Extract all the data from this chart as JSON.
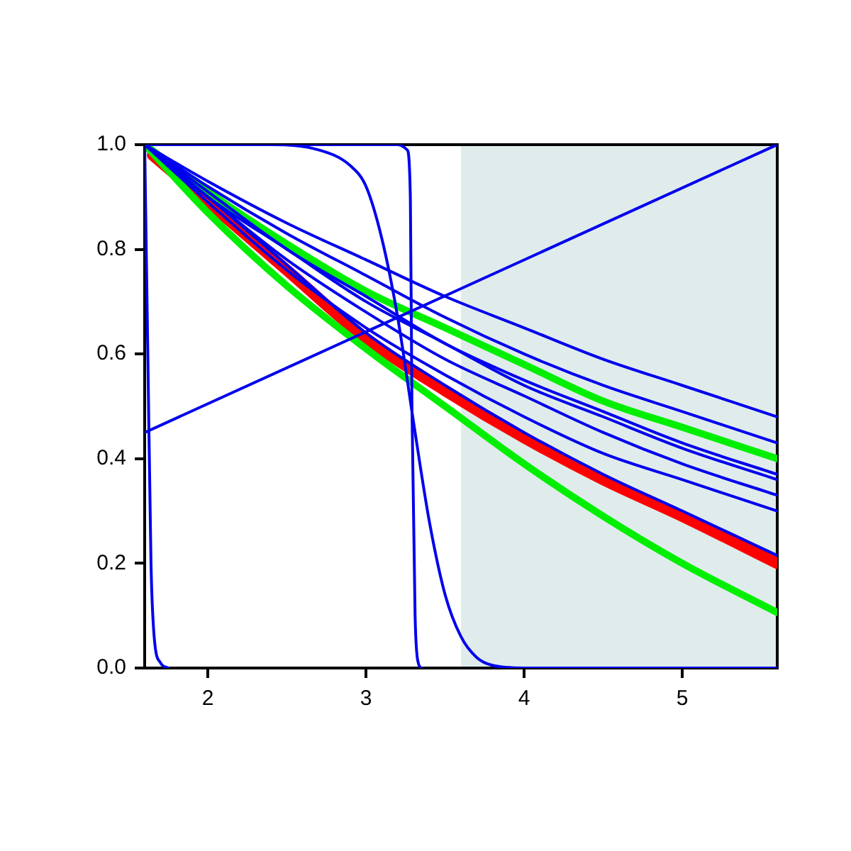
{
  "chart_data": {
    "type": "line",
    "xlim": [
      1.6,
      5.6
    ],
    "ylim": [
      0,
      1
    ],
    "xticks": [
      2,
      3,
      4,
      5
    ],
    "yticks": [
      {
        "value": 0,
        "label": "0.0"
      },
      {
        "value": 0.2,
        "label": "0.2"
      },
      {
        "value": 0.4,
        "label": "0.4"
      },
      {
        "value": 0.6,
        "label": "0.6"
      },
      {
        "value": 0.8,
        "label": "0.8"
      },
      {
        "value": 1,
        "label": "1.0"
      }
    ],
    "bands": [
      {
        "axis": "x",
        "from": 3.6,
        "to": 5.6,
        "color": "#e0ecec"
      }
    ],
    "legend": false,
    "marker": "none",
    "line_style": "solid",
    "series": [
      {
        "color": "#0000ee",
        "x": [
          1.6,
          5.6
        ],
        "values": [
          0.45,
          1
        ]
      },
      {
        "color": "#0000ee",
        "x": [
          1.6,
          1.62,
          1.64,
          1.66,
          1.7,
          1.75
        ],
        "values": [
          1,
          0.6,
          0.2,
          0.06,
          0.01,
          0
        ]
      },
      {
        "color": "#0000ee",
        "x": [
          1.6,
          3.2,
          3.26,
          3.28,
          3.29,
          3.31,
          3.33,
          3.35
        ],
        "values": [
          1,
          1,
          0.99,
          0.9,
          0.5,
          0.1,
          0.01,
          0
        ]
      },
      {
        "color": "#0000ee",
        "x": [
          1.6,
          2.4,
          2.7,
          2.9,
          3.0,
          3.1,
          3.2,
          3.3,
          3.4,
          3.5,
          3.6,
          3.7,
          3.8,
          4.0,
          5.6
        ],
        "values": [
          1,
          1,
          0.99,
          0.96,
          0.92,
          0.82,
          0.67,
          0.47,
          0.28,
          0.14,
          0.06,
          0.02,
          0.005,
          0,
          0
        ]
      },
      {
        "color": "#0000ee",
        "x": [
          1.6,
          2,
          2.5,
          3,
          3.5,
          4,
          4.5,
          5,
          5.6
        ],
        "values": [
          1,
          0.93,
          0.85,
          0.78,
          0.71,
          0.65,
          0.59,
          0.54,
          0.48
        ]
      },
      {
        "color": "#0000ee",
        "x": [
          1.6,
          2,
          2.5,
          3,
          3.5,
          4,
          4.5,
          5,
          5.6
        ],
        "values": [
          1,
          0.92,
          0.83,
          0.75,
          0.67,
          0.6,
          0.54,
          0.49,
          0.43
        ]
      },
      {
        "color": "#0000ee",
        "x": [
          1.6,
          2,
          2.5,
          3,
          3.5,
          4,
          4.5,
          5,
          5.6
        ],
        "values": [
          1,
          0.91,
          0.8,
          0.71,
          0.62,
          0.55,
          0.49,
          0.43,
          0.37
        ]
      },
      {
        "color": "#0000ee",
        "x": [
          1.6,
          2,
          2.5,
          3,
          3.5,
          4,
          4.5,
          5,
          5.6
        ],
        "values": [
          1,
          0.9,
          0.8,
          0.7,
          0.62,
          0.54,
          0.48,
          0.42,
          0.36
        ]
      },
      {
        "color": "#0000ee",
        "x": [
          1.6,
          2,
          2.5,
          3,
          3.5,
          4,
          4.5,
          5,
          5.6
        ],
        "values": [
          1,
          0.9,
          0.78,
          0.68,
          0.59,
          0.52,
          0.45,
          0.39,
          0.33
        ]
      },
      {
        "color": "#0000ee",
        "x": [
          1.6,
          2,
          2.5,
          3,
          3.5,
          4,
          4.5,
          5,
          5.6
        ],
        "values": [
          1,
          0.89,
          0.76,
          0.65,
          0.56,
          0.48,
          0.41,
          0.36,
          0.3
        ]
      },
      {
        "color": "#0000ee",
        "x": [
          1.6,
          2,
          2.5,
          3,
          3.5,
          4,
          4.5,
          5,
          5.6
        ],
        "values": [
          1,
          0.9,
          0.77,
          0.64,
          0.54,
          0.45,
          0.37,
          0.3,
          0.215
        ]
      },
      {
        "color": "#00ee00",
        "x": [
          1.6,
          2,
          2.5,
          3,
          3.5,
          4,
          4.5,
          5,
          5.6
        ],
        "values": [
          1,
          0.91,
          0.81,
          0.72,
          0.65,
          0.58,
          0.51,
          0.46,
          0.4
        ]
      },
      {
        "color": "#00ee00",
        "x": [
          1.6,
          2,
          2.5,
          3,
          3.5,
          4,
          4.5,
          5,
          5.6
        ],
        "values": [
          1,
          0.87,
          0.73,
          0.61,
          0.5,
          0.39,
          0.29,
          0.2,
          0.106
        ]
      },
      {
        "color": "#ff0000",
        "x": [
          1.65,
          2,
          2.5,
          3,
          3.5,
          4,
          4.5,
          5,
          5.6
        ],
        "values": [
          0.98,
          0.89,
          0.76,
          0.63,
          0.53,
          0.44,
          0.36,
          0.29,
          0.2
        ]
      }
    ]
  }
}
